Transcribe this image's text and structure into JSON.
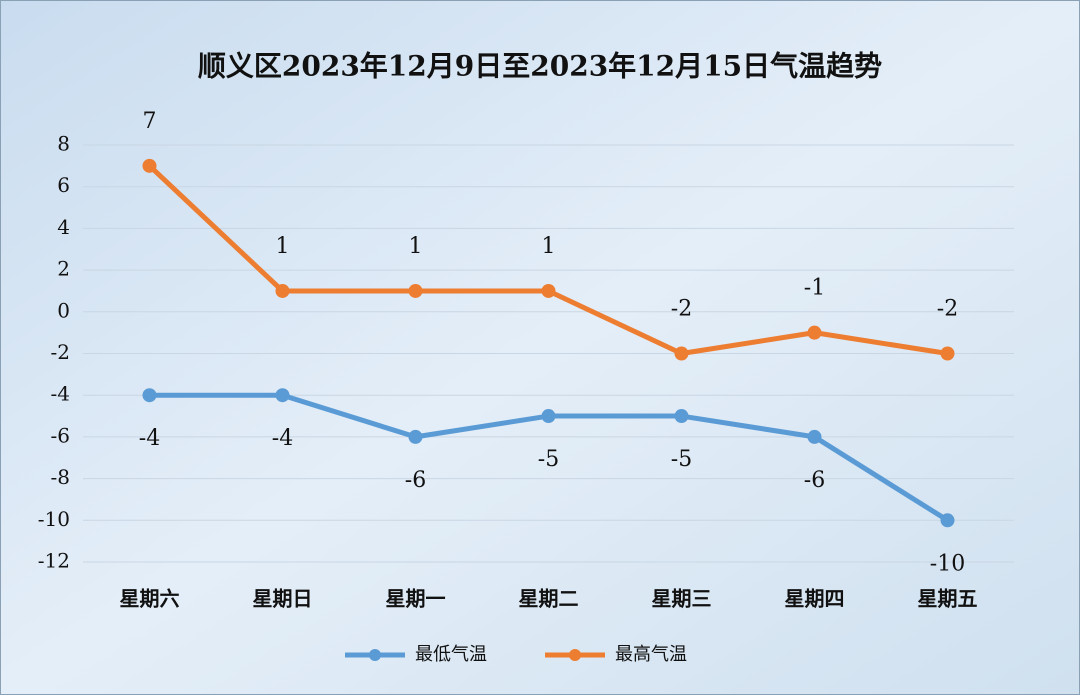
{
  "chart_data": {
    "type": "line",
    "title": "顺义区2023年12月9日至2023年12月15日气温趋势",
    "categories": [
      "星期六",
      "星期日",
      "星期一",
      "星期二",
      "星期三",
      "星期四",
      "星期五"
    ],
    "series": [
      {
        "name": "最低气温",
        "color": "#5b9bd5",
        "values": [
          -4,
          -4,
          -6,
          -5,
          -5,
          -6,
          -10
        ]
      },
      {
        "name": "最高气温",
        "color": "#ed7d31",
        "values": [
          7,
          1,
          1,
          1,
          -2,
          -1,
          -2
        ]
      }
    ],
    "ylim": [
      -12,
      8
    ],
    "yticks": [
      -12,
      -10,
      -8,
      -6,
      -4,
      -2,
      0,
      2,
      4,
      6,
      8
    ],
    "grid": true
  }
}
